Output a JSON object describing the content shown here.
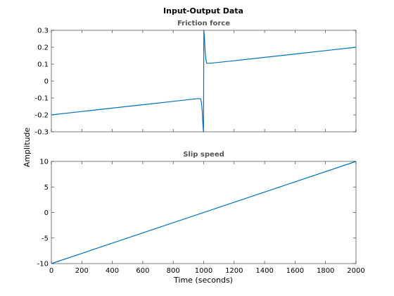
{
  "figure": {
    "title": "Input-Output Data",
    "ylabel": "Amplitude",
    "xlabel": "Time (seconds)",
    "line_color": "#0072BD"
  },
  "chart_data": [
    {
      "type": "line",
      "title": "Friction force",
      "xlim": [
        0,
        2000
      ],
      "ylim": [
        -0.3,
        0.3
      ],
      "yticks": [
        -0.3,
        -0.2,
        -0.1,
        0,
        0.1,
        0.2,
        0.3
      ],
      "ytick_labels": [
        "-0.3",
        "-0.2",
        "-0.1",
        "0",
        "0.1",
        "0.2",
        "0.3"
      ],
      "xticks": [],
      "x": [
        0,
        200,
        400,
        600,
        800,
        960,
        980,
        985,
        990,
        995,
        999,
        1000,
        1001,
        1005,
        1010,
        1015,
        1020,
        1040,
        1200,
        1400,
        1600,
        1800,
        2000
      ],
      "y": [
        -0.2,
        -0.18,
        -0.16,
        -0.14,
        -0.12,
        -0.104,
        -0.105,
        -0.125,
        -0.17,
        -0.26,
        -0.3,
        0.0,
        0.3,
        0.26,
        0.17,
        0.125,
        0.105,
        0.105,
        0.12,
        0.14,
        0.16,
        0.18,
        0.2
      ]
    },
    {
      "type": "line",
      "title": "Slip speed",
      "xlim": [
        0,
        2000
      ],
      "ylim": [
        -10,
        10
      ],
      "yticks": [
        -10,
        -5,
        0,
        5,
        10
      ],
      "ytick_labels": [
        "-10",
        "-5",
        "0",
        "5",
        "10"
      ],
      "xticks": [
        0,
        200,
        400,
        600,
        800,
        1000,
        1200,
        1400,
        1600,
        1800,
        2000
      ],
      "xtick_labels": [
        "0",
        "200",
        "400",
        "600",
        "800",
        "1000",
        "1200",
        "1400",
        "1600",
        "1800",
        "2000"
      ],
      "x": [
        0,
        2000
      ],
      "y": [
        -10,
        10
      ]
    }
  ]
}
